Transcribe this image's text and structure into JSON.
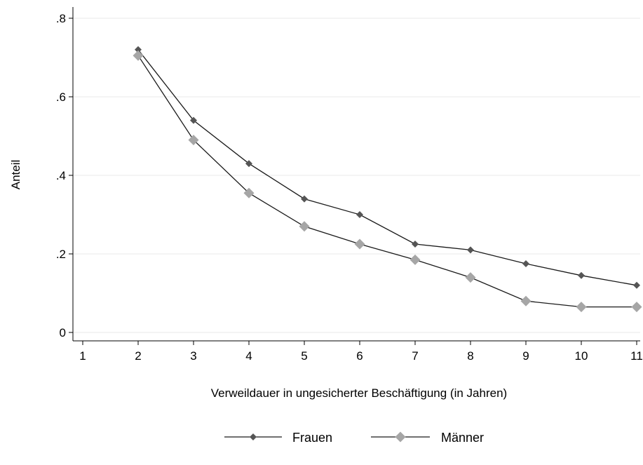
{
  "chart_data": {
    "type": "line",
    "title": "",
    "xlabel": "Verweildauer in ungesicherter Beschäftigung (in Jahren)",
    "ylabel": "Anteil",
    "xlim": [
      1,
      11
    ],
    "ylim": [
      0,
      0.8
    ],
    "x_ticks": [
      {
        "value": 1,
        "label": "1"
      },
      {
        "value": 2,
        "label": "2"
      },
      {
        "value": 3,
        "label": "3"
      },
      {
        "value": 4,
        "label": "4"
      },
      {
        "value": 5,
        "label": "5"
      },
      {
        "value": 6,
        "label": "6"
      },
      {
        "value": 7,
        "label": "7"
      },
      {
        "value": 8,
        "label": "8"
      },
      {
        "value": 9,
        "label": "9"
      },
      {
        "value": 10,
        "label": "10"
      },
      {
        "value": 11,
        "label": "11"
      }
    ],
    "y_ticks": [
      {
        "value": 0,
        "label": "0"
      },
      {
        "value": 0.2,
        "label": ".2"
      },
      {
        "value": 0.4,
        "label": ".4"
      },
      {
        "value": 0.6,
        "label": ".6"
      },
      {
        "value": 0.8,
        "label": ".8"
      }
    ],
    "grid": true,
    "legend_position": "bottom",
    "series": [
      {
        "name": "Frauen",
        "color": "#555555",
        "marker": "small-diamond",
        "x": [
          2,
          3,
          4,
          5,
          6,
          7,
          8,
          9,
          10,
          11
        ],
        "y": [
          0.72,
          0.54,
          0.43,
          0.34,
          0.3,
          0.225,
          0.21,
          0.175,
          0.145,
          0.12
        ]
      },
      {
        "name": "Männer",
        "color": "#a6a6a6",
        "marker": "large-diamond",
        "x": [
          2,
          3,
          4,
          5,
          6,
          7,
          8,
          9,
          10,
          11
        ],
        "y": [
          0.705,
          0.49,
          0.355,
          0.27,
          0.225,
          0.185,
          0.14,
          0.08,
          0.065,
          0.065
        ]
      }
    ]
  }
}
